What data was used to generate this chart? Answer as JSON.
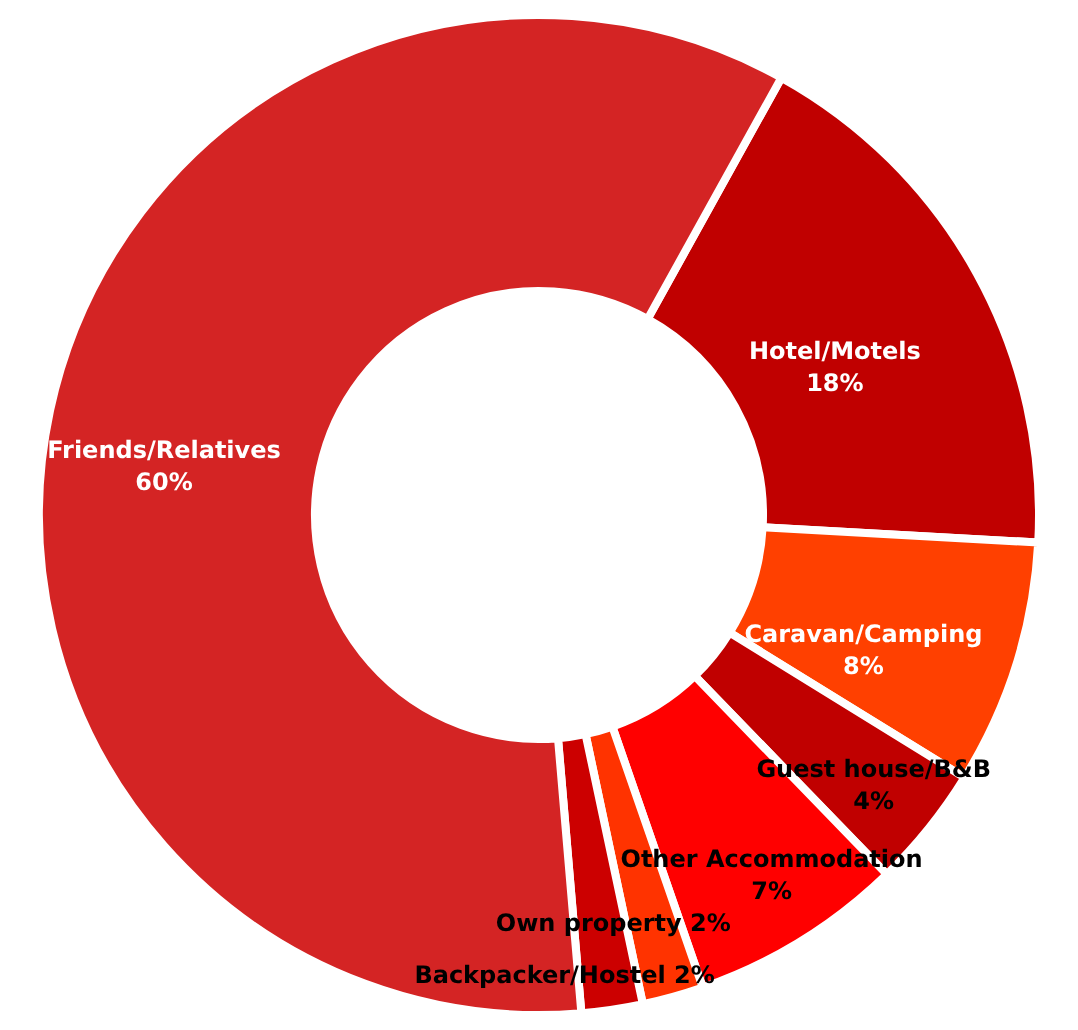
{
  "chart_data": {
    "type": "donut",
    "categories": [
      "Hotel/Motels",
      "Caravan/Camping",
      "Guest house/B&B",
      "Other Accommodation",
      "Own property",
      "Backpacker/Hostel",
      "Friends/Relatives"
    ],
    "values": [
      18,
      8,
      4,
      7,
      2,
      2,
      60
    ],
    "colors": [
      "#c00000",
      "#ff4000",
      "#c00000",
      "#ff0000",
      "#ff3300",
      "#cc0000",
      "#d42424"
    ],
    "value_labels": [
      "18%",
      "8%",
      "4%",
      "7%",
      "2%",
      "2%",
      "60%"
    ]
  }
}
